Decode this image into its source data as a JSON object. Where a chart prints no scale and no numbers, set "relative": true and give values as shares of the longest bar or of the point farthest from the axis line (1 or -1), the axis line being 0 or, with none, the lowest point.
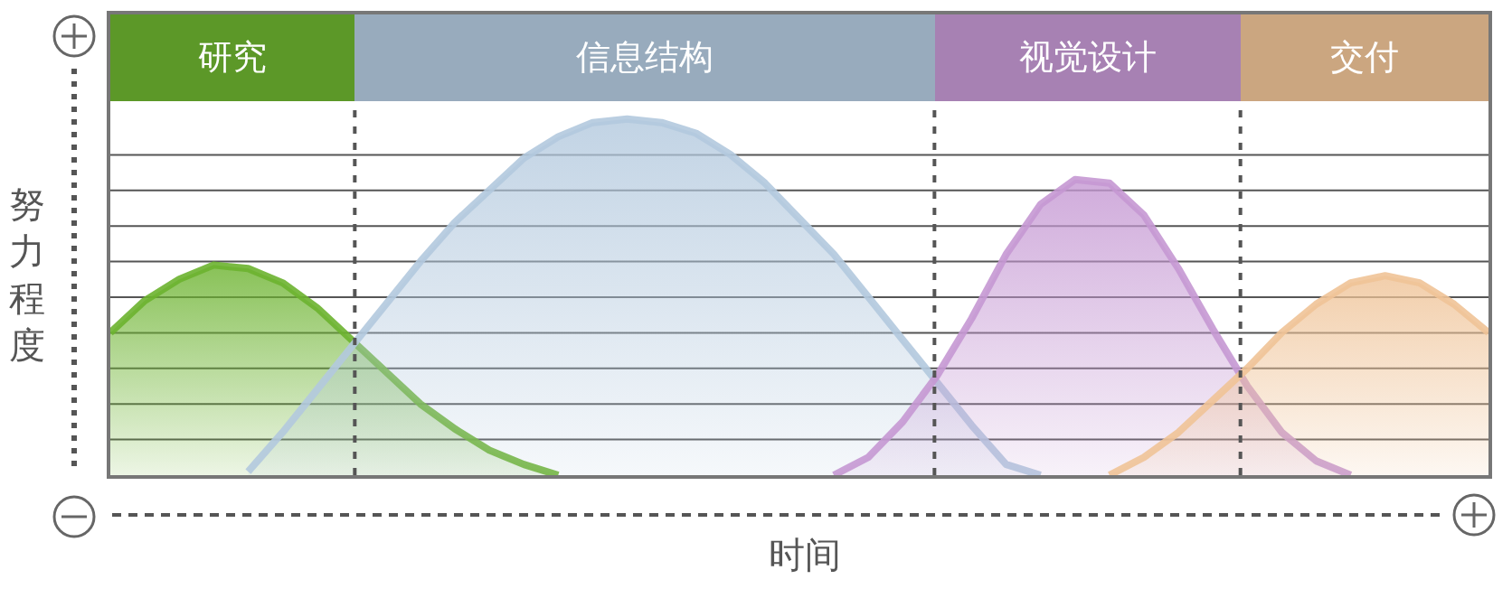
{
  "chart_data": {
    "type": "area",
    "relative": true,
    "xlabel": "时间",
    "ylabel": "努力程度",
    "grid": "y",
    "legend": "top",
    "categories": [
      null,
      null,
      null,
      null,
      null,
      null,
      null,
      null,
      null,
      null,
      null,
      null,
      null,
      null,
      null,
      null,
      null,
      null,
      null,
      null,
      null,
      null,
      null,
      null,
      null,
      null,
      null,
      null,
      null,
      null,
      null,
      null,
      null,
      null,
      null,
      null,
      null,
      null,
      null,
      null,
      null
    ],
    "series": [
      {
        "name": "研究",
        "color": "#6cb32f",
        "values": [
          0.4,
          0.49,
          0.55,
          0.59,
          0.58,
          0.54,
          0.47,
          0.38,
          0.29,
          0.2,
          0.13,
          0.07,
          0.03,
          0.0,
          null,
          null,
          null,
          null,
          null,
          null,
          null,
          null,
          null,
          null,
          null,
          null,
          null,
          null,
          null,
          null,
          null,
          null,
          null,
          null,
          null,
          null,
          null,
          null,
          null,
          null,
          null
        ]
      },
      {
        "name": "信息结构",
        "color": "#b3c9de",
        "values": [
          null,
          null,
          null,
          null,
          0.01,
          0.12,
          0.24,
          0.36,
          0.48,
          0.6,
          0.71,
          0.8,
          0.89,
          0.95,
          0.99,
          1.0,
          0.99,
          0.96,
          0.9,
          0.82,
          0.72,
          0.62,
          0.5,
          0.38,
          0.26,
          0.14,
          0.03,
          0,
          null,
          null,
          null,
          null,
          null,
          null,
          null,
          null,
          null,
          null,
          null,
          null,
          null
        ]
      },
      {
        "name": "视觉设计",
        "color": "#c598d3",
        "values": [
          null,
          null,
          null,
          null,
          null,
          null,
          null,
          null,
          null,
          null,
          null,
          null,
          null,
          null,
          null,
          null,
          null,
          null,
          null,
          null,
          null,
          0,
          0.05,
          0.15,
          0.28,
          0.44,
          0.62,
          0.76,
          0.83,
          0.82,
          0.73,
          0.58,
          0.41,
          0.25,
          0.12,
          0.04,
          0,
          null,
          null,
          null,
          null
        ]
      },
      {
        "name": "交付",
        "color": "#efc397",
        "values": [
          null,
          null,
          null,
          null,
          null,
          null,
          null,
          null,
          null,
          null,
          null,
          null,
          null,
          null,
          null,
          null,
          null,
          null,
          null,
          null,
          null,
          null,
          null,
          null,
          null,
          null,
          null,
          null,
          null,
          0,
          0.05,
          0.12,
          0.21,
          0.3,
          0.4,
          0.48,
          0.54,
          0.56,
          0.54,
          0.48,
          0.4
        ]
      }
    ]
  }
}
